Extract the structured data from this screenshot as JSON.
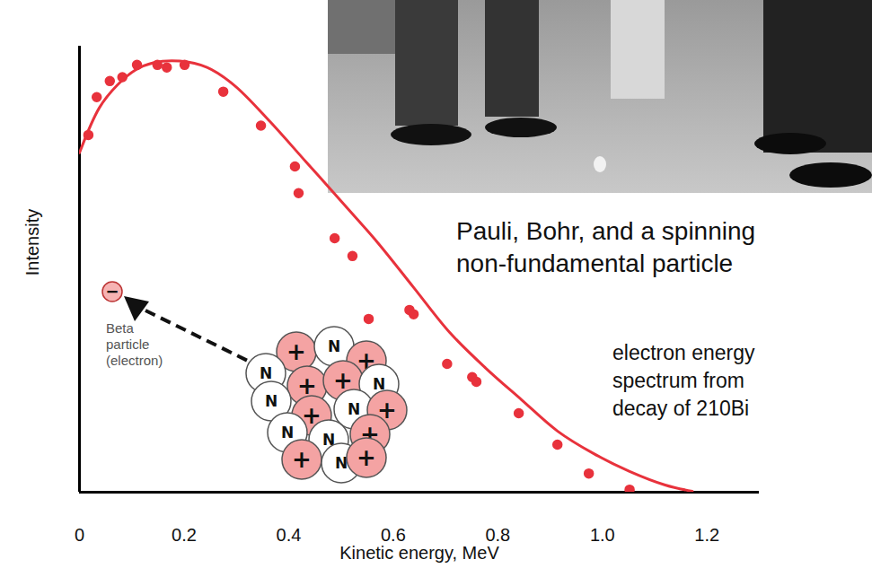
{
  "chart_data": {
    "type": "line",
    "x_label": "Kinetic energy, MeV",
    "y_label": "Intensity",
    "xlim": [
      0,
      1.3
    ],
    "xticks": [
      0,
      0.2,
      0.4,
      0.6,
      0.8,
      {
        "value": 1,
        "label": "1.0"
      },
      1.2
    ],
    "ylim": [
      0,
      105
    ],
    "tick_labels": "x",
    "grid": false,
    "series": [
      {
        "type": "line",
        "color": "#e8323c",
        "line_style": "solid",
        "x": [
          0,
          0.038,
          0.072,
          0.107,
          0.141,
          0.192,
          0.244,
          0.296,
          0.364,
          0.433,
          0.502,
          0.57,
          0.639,
          0.708,
          0.777,
          0.845,
          0.914,
          0.983,
          1.052,
          1.12,
          1.172
        ],
        "values": [
          79.9,
          90.5,
          95.8,
          99.4,
          101.1,
          101.5,
          100.0,
          95.8,
          87.3,
          77.8,
          68.3,
          58.8,
          48.2,
          37.6,
          29.2,
          21.8,
          14.4,
          9.1,
          4.9,
          1.7,
          0.2
        ]
      },
      {
        "type": "scatter",
        "color": "#e8323c",
        "marker": "circle",
        "x": [
          0.017,
          0.033,
          0.058,
          0.082,
          0.11,
          0.149,
          0.167,
          0.201,
          0.275,
          0.347,
          0.412,
          0.419,
          0.488,
          0.522,
          0.553,
          0.631,
          0.639,
          0.703,
          0.751,
          0.759,
          0.84,
          0.914,
          0.974,
          1.052
        ],
        "values": [
          84.1,
          93.0,
          96.8,
          97.7,
          100.6,
          100.6,
          100.0,
          100.6,
          94.3,
          86.3,
          76.7,
          70.4,
          59.8,
          55.6,
          40.8,
          42.9,
          41.9,
          30.2,
          27.1,
          26.0,
          18.6,
          11.2,
          4.4,
          0.6
        ]
      }
    ],
    "annotations": {
      "photo_caption": "Pauli, Bohr, and a spinning non-fundamental particle",
      "spectrum_note": "electron energy spectrum from decay of 210Bi"
    },
    "diagram": {
      "beta_label": "Beta particle (electron)",
      "electron": "−",
      "nucleus": [
        "+",
        "N",
        "+",
        "N",
        "+",
        "+",
        "N",
        "N",
        "+",
        "N",
        "+",
        "N",
        "N",
        "+",
        "+",
        "N",
        "+"
      ]
    }
  }
}
